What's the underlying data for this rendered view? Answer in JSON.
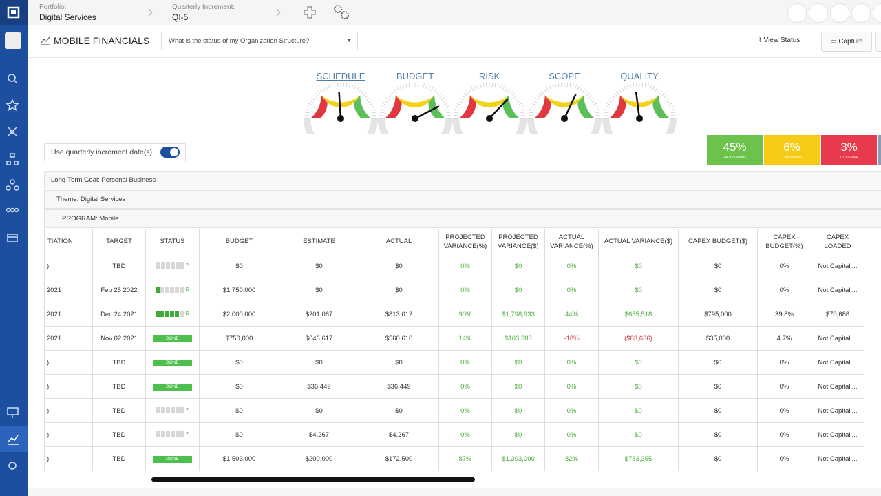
{
  "header": {
    "portfolio_label": "Portfolio:",
    "portfolio": "Digital Services",
    "increment_label": "Quarterly Increment:",
    "increment": "QI-5"
  },
  "toolbar": {
    "title": "MOBILE FINANCIALS",
    "question": "What is the status of my Organization Structure?",
    "view_status": "View Status",
    "capture": "Capture"
  },
  "gauges": [
    {
      "label": "SCHEDULE",
      "value": 48
    },
    {
      "label": "BUDGET",
      "value": 85
    },
    {
      "label": "RISK",
      "value": 74
    },
    {
      "label": "SCOPE",
      "value": 64
    },
    {
      "label": "QUALITY",
      "value": 46
    }
  ],
  "toggle": {
    "label": "Use quarterly increment date(s)",
    "on": true
  },
  "tiles": [
    {
      "percent": "45%",
      "caption": "14 Initiatives",
      "color": "#6cc24a"
    },
    {
      "percent": "6%",
      "caption": "2 Initiatives",
      "color": "#f5cb16"
    },
    {
      "percent": "3%",
      "caption": "1 Initiative",
      "color": "#e8394d"
    }
  ],
  "breadcrumbs": [
    "Long-Term Goal: Personal Business",
    "Theme: Digital Services",
    "PROGRAM: Mobile"
  ],
  "table": {
    "columns": [
      "TIATION",
      "TARGET",
      "STATUS",
      "BUDGET",
      "ESTIMATE",
      "ACTUAL",
      "PROJECTED VARIANCE(%)",
      "PROJECTED VARIANCE($)",
      "ACTUAL VARIANCE(%)",
      "ACTUAL VARIANCE($)",
      "CAPEX BUDGET($)",
      "CAPEX BUDGET(%)",
      "CAPEX LOADED"
    ],
    "rows": [
      [
        ")",
        "TBD",
        {
          "filled": 0,
          "flag": "?"
        },
        "$0",
        "$0",
        "$0",
        "0%",
        "$0",
        "0%",
        "$0",
        "$0",
        "0%",
        "Not Capitali..."
      ],
      [
        "2021",
        "Feb 25 2022",
        {
          "filled": 1,
          "flag": "G"
        },
        "$1,750,000",
        "$0",
        "$0",
        "0%",
        "$0",
        "0%",
        "$0",
        "$0",
        "0%",
        "Not Capitali..."
      ],
      [
        "2021",
        "Dec 24 2021",
        {
          "filled": 5,
          "flag": "G"
        },
        "$2,000,000",
        "$201,067",
        "$813,012",
        "90%",
        "$1,798,933",
        "44%",
        "$635,518",
        "$795,000",
        "39.8%",
        "$70,686"
      ],
      [
        "2021",
        "Nov 02 2021",
        {
          "label": "DONE"
        },
        "$750,000",
        "$646,617",
        "$560,610",
        "14%",
        "$103,383",
        "-18%",
        "($83,636)",
        "$35,000",
        "4.7%",
        "Not Capitali..."
      ],
      [
        ")",
        "TBD",
        {
          "label": "DONE"
        },
        "$0",
        "$0",
        "$0",
        "0%",
        "$0",
        "0%",
        "$0",
        "$0",
        "0%",
        "Not Capitali..."
      ],
      [
        ")",
        "TBD",
        {
          "label": "DONE"
        },
        "$0",
        "$36,449",
        "$36,449",
        "0%",
        "$0",
        "0%",
        "$0",
        "$0",
        "0%",
        "Not Capitali..."
      ],
      [
        ")",
        "TBD",
        {
          "filled": 0,
          "flag": "?"
        },
        "$0",
        "$0",
        "$0",
        "0%",
        "$0",
        "0%",
        "$0",
        "$0",
        "0%",
        "Not Capitali..."
      ],
      [
        ")",
        "TBD",
        {
          "filled": 0,
          "flag": "?"
        },
        "$0",
        "$4,267",
        "$4,267",
        "0%",
        "$0",
        "0%",
        "$0",
        "$0",
        "0%",
        "Not Capitali..."
      ],
      [
        ")",
        "TBD",
        {
          "label": "DONE"
        },
        "$1,503,000",
        "$200,000",
        "$172,500",
        "87%",
        "$1,303,000",
        "82%",
        "$783,355",
        "$0",
        "0%",
        "Not Capitali..."
      ]
    ]
  }
}
